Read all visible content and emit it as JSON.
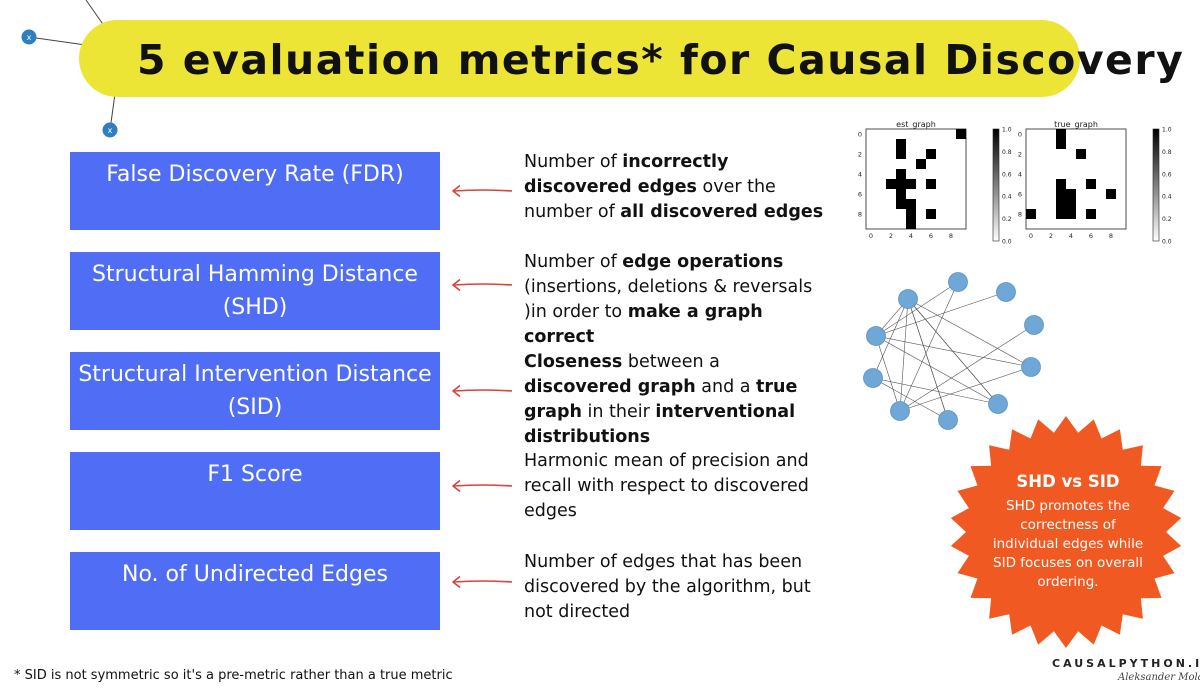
{
  "title": "5 evaluation metrics* for Causal Discovery",
  "metrics": [
    {
      "label": "False Discovery Rate (FDR)",
      "description": [
        {
          "t": "Number of ",
          "b": false
        },
        {
          "t": "incorrectly discovered edges",
          "b": true
        },
        {
          "t": " over the number of ",
          "b": false
        },
        {
          "t": "all discovered edges",
          "b": true
        }
      ]
    },
    {
      "label": "Structural Hamming Distance (SHD)",
      "description": [
        {
          "t": "Number of ",
          "b": false
        },
        {
          "t": "edge operations",
          "b": true
        },
        {
          "t": " (insertions, deletions & reversals )in order to ",
          "b": false
        },
        {
          "t": "make a graph correct",
          "b": true
        }
      ]
    },
    {
      "label": "Structural Intervention Distance (SID)",
      "description": [
        {
          "t": "Closeness",
          "b": true
        },
        {
          "t": " between a ",
          "b": false
        },
        {
          "t": "discovered graph",
          "b": true
        },
        {
          "t": " and a ",
          "b": false
        },
        {
          "t": "true graph",
          "b": true
        },
        {
          "t": " in their ",
          "b": false
        },
        {
          "t": "interventional distributions",
          "b": true
        }
      ]
    },
    {
      "label": "F1 Score",
      "description": [
        {
          "t": "Harmonic mean of precision and recall with respect to discovered edges",
          "b": false
        }
      ]
    },
    {
      "label": "No. of Undirected Edges",
      "description": [
        {
          "t": "Number of edges that has been discovered by the algorithm, but not directed",
          "b": false
        }
      ]
    }
  ],
  "heatmaps": [
    {
      "title": "est_graph",
      "cells": [
        [
          0,
          9
        ],
        [
          1,
          3
        ],
        [
          2,
          3
        ],
        [
          2,
          6
        ],
        [
          3,
          5
        ],
        [
          4,
          3
        ],
        [
          5,
          2
        ],
        [
          5,
          3
        ],
        [
          5,
          4
        ],
        [
          5,
          6
        ],
        [
          6,
          3
        ],
        [
          7,
          3
        ],
        [
          7,
          4
        ],
        [
          8,
          4
        ],
        [
          8,
          6
        ],
        [
          9,
          4
        ]
      ]
    },
    {
      "title": "true_graph",
      "cells": [
        [
          0,
          3
        ],
        [
          1,
          3
        ],
        [
          2,
          5
        ],
        [
          5,
          3
        ],
        [
          5,
          6
        ],
        [
          6,
          3
        ],
        [
          6,
          4
        ],
        [
          6,
          8
        ],
        [
          7,
          3
        ],
        [
          7,
          4
        ],
        [
          8,
          0
        ],
        [
          8,
          3
        ],
        [
          8,
          4
        ],
        [
          8,
          6
        ]
      ]
    }
  ],
  "heatmap_axis": {
    "ticks": [
      "0",
      "2",
      "4",
      "6",
      "8"
    ],
    "colorbar_ticks": [
      "1.0",
      "0.8",
      "0.6",
      "0.4",
      "0.2",
      "0.0"
    ]
  },
  "badge": {
    "title": "SHD vs SID",
    "body": "SHD promotes the correctness of individual edges while SID focuses on overall ordering."
  },
  "footnote": "* SID is not symmetric so it's a pre-metric rather than a true metric",
  "brand": "CAUSALPYTHON.IO",
  "signature": "Aleksander Molak",
  "colors": {
    "title_bg": "#ece536",
    "metric_box": "#4f6ef5",
    "arrow": "#d9433c",
    "badge": "#f05a22",
    "node": "#6fa8d6",
    "deco_node": "#2f7fc0"
  }
}
